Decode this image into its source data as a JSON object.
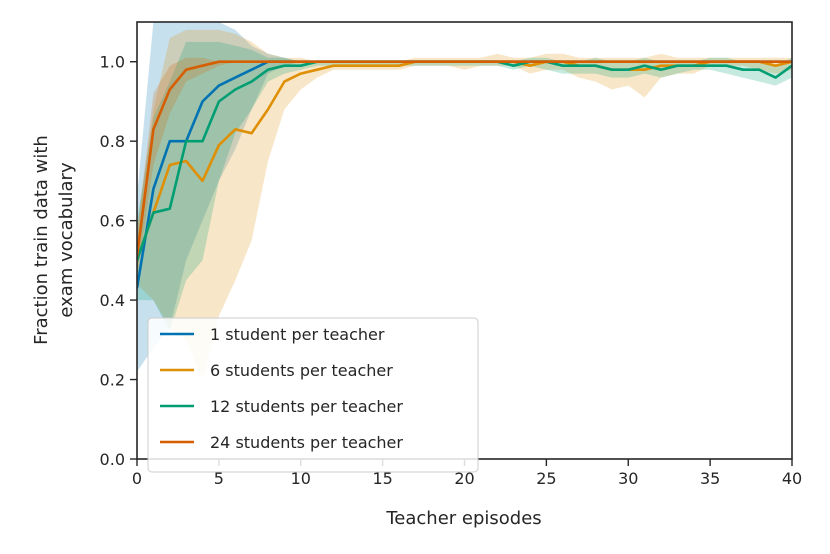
{
  "chart_data": {
    "type": "line",
    "xlabel": "Teacher episodes",
    "ylabel_lines": [
      "Fraction train data with",
      "exam vocabulary"
    ],
    "xlim": [
      0,
      40
    ],
    "ylim": [
      0,
      1.1
    ],
    "xticks": [
      0,
      5,
      10,
      15,
      20,
      25,
      30,
      35,
      40
    ],
    "yticks": [
      0.0,
      0.2,
      0.4,
      0.6,
      0.8,
      1.0
    ],
    "xtick_labels": [
      "0",
      "5",
      "10",
      "15",
      "20",
      "25",
      "30",
      "35",
      "40"
    ],
    "ytick_labels": [
      "0.0",
      "0.2",
      "0.4",
      "0.6",
      "0.8",
      "1.0"
    ],
    "grid": false,
    "legend_position": "lower-left",
    "x": [
      0,
      1,
      2,
      3,
      4,
      5,
      6,
      7,
      8,
      9,
      10,
      11,
      12,
      13,
      14,
      15,
      16,
      17,
      18,
      19,
      20,
      21,
      22,
      23,
      24,
      25,
      26,
      27,
      28,
      29,
      30,
      31,
      32,
      33,
      34,
      35,
      36,
      37,
      38,
      39,
      40
    ],
    "series": [
      {
        "name": "1 student per teacher",
        "color": "#0173b2",
        "values": [
          0.43,
          0.68,
          0.8,
          0.8,
          0.9,
          0.94,
          0.96,
          0.98,
          1.0,
          1.0,
          1.0,
          1.0,
          1.0,
          1.0,
          1.0,
          1.0,
          1.0,
          1.0,
          1.0,
          1.0,
          1.0,
          1.0,
          1.0,
          1.0,
          1.0,
          1.0,
          1.0,
          1.0,
          1.0,
          1.0,
          1.0,
          1.0,
          1.0,
          1.0,
          1.0,
          1.0,
          1.0,
          1.0,
          1.0,
          1.0,
          1.0
        ],
        "lower": [
          0.22,
          0.28,
          0.33,
          0.5,
          0.6,
          0.7,
          0.78,
          0.88,
          0.97,
          0.99,
          1.0,
          1.0,
          1.0,
          1.0,
          1.0,
          1.0,
          1.0,
          1.0,
          1.0,
          1.0,
          1.0,
          1.0,
          1.0,
          1.0,
          1.0,
          1.0,
          1.0,
          1.0,
          1.0,
          1.0,
          1.0,
          1.0,
          1.0,
          1.0,
          1.0,
          1.0,
          1.0,
          1.0,
          1.0,
          1.0,
          1.0
        ],
        "upper": [
          0.66,
          1.1,
          1.1,
          1.1,
          1.1,
          1.1,
          1.08,
          1.04,
          1.02,
          1.01,
          1.0,
          1.0,
          1.0,
          1.0,
          1.0,
          1.0,
          1.0,
          1.0,
          1.0,
          1.0,
          1.0,
          1.0,
          1.0,
          1.0,
          1.0,
          1.0,
          1.0,
          1.0,
          1.0,
          1.0,
          1.0,
          1.0,
          1.0,
          1.0,
          1.0,
          1.0,
          1.0,
          1.0,
          1.0,
          1.0,
          1.0
        ]
      },
      {
        "name": "6 students per teacher",
        "color": "#de8f05",
        "values": [
          0.5,
          0.62,
          0.74,
          0.75,
          0.7,
          0.79,
          0.83,
          0.82,
          0.88,
          0.95,
          0.97,
          0.98,
          0.99,
          0.99,
          0.99,
          0.99,
          0.99,
          1.0,
          1.0,
          1.0,
          1.0,
          1.0,
          1.0,
          1.0,
          0.99,
          1.0,
          1.0,
          0.99,
          0.99,
          0.98,
          0.98,
          0.98,
          0.99,
          0.99,
          0.99,
          1.0,
          1.0,
          1.0,
          1.0,
          0.99,
          1.0
        ],
        "lower": [
          0.44,
          0.4,
          0.33,
          0.3,
          0.2,
          0.36,
          0.45,
          0.55,
          0.75,
          0.88,
          0.93,
          0.96,
          0.98,
          0.98,
          0.98,
          0.98,
          0.98,
          0.99,
          0.99,
          0.99,
          0.98,
          0.99,
          0.99,
          0.99,
          0.97,
          0.98,
          0.98,
          0.96,
          0.95,
          0.93,
          0.94,
          0.91,
          0.96,
          0.97,
          0.97,
          0.99,
          0.99,
          0.99,
          0.98,
          0.97,
          0.98
        ],
        "upper": [
          0.58,
          0.88,
          1.06,
          1.08,
          1.08,
          1.08,
          1.07,
          1.05,
          1.02,
          1.01,
          1.01,
          1.0,
          1.0,
          1.0,
          1.0,
          1.0,
          1.0,
          1.01,
          1.01,
          1.01,
          1.01,
          1.01,
          1.02,
          1.01,
          1.01,
          1.02,
          1.02,
          1.01,
          1.01,
          1.01,
          1.01,
          1.01,
          1.02,
          1.01,
          1.01,
          1.01,
          1.01,
          1.01,
          1.01,
          1.01,
          1.01
        ]
      },
      {
        "name": "12 students per teacher",
        "color": "#029e73",
        "values": [
          0.5,
          0.62,
          0.63,
          0.8,
          0.8,
          0.9,
          0.93,
          0.95,
          0.98,
          0.99,
          0.99,
          1.0,
          1.0,
          1.0,
          1.0,
          1.0,
          1.0,
          1.0,
          1.0,
          1.0,
          1.0,
          1.0,
          1.0,
          0.99,
          1.0,
          1.0,
          0.99,
          0.99,
          0.99,
          0.98,
          0.98,
          0.99,
          0.98,
          0.99,
          0.99,
          0.99,
          0.99,
          0.98,
          0.98,
          0.96,
          0.99
        ],
        "lower": [
          0.4,
          0.4,
          0.32,
          0.45,
          0.5,
          0.7,
          0.82,
          0.88,
          0.95,
          0.97,
          0.98,
          0.99,
          0.99,
          0.99,
          0.99,
          0.99,
          0.99,
          0.99,
          0.99,
          0.99,
          0.99,
          0.99,
          0.99,
          0.98,
          0.99,
          0.98,
          0.97,
          0.97,
          0.97,
          0.96,
          0.96,
          0.97,
          0.96,
          0.97,
          0.98,
          0.98,
          0.97,
          0.96,
          0.95,
          0.94,
          0.96
        ],
        "upper": [
          0.6,
          0.86,
          0.95,
          1.05,
          1.05,
          1.05,
          1.04,
          1.03,
          1.01,
          1.01,
          1.0,
          1.0,
          1.0,
          1.0,
          1.0,
          1.0,
          1.0,
          1.0,
          1.0,
          1.0,
          1.0,
          1.0,
          1.0,
          1.0,
          1.01,
          1.01,
          1.0,
          1.0,
          1.01,
          1.0,
          1.0,
          1.01,
          1.0,
          1.0,
          1.0,
          1.01,
          1.01,
          1.0,
          1.0,
          0.99,
          1.01
        ]
      },
      {
        "name": "24 students per teacher",
        "color": "#d55e00",
        "values": [
          0.51,
          0.83,
          0.93,
          0.98,
          0.99,
          1.0,
          1.0,
          1.0,
          1.0,
          1.0,
          1.0,
          1.0,
          1.0,
          1.0,
          1.0,
          1.0,
          1.0,
          1.0,
          1.0,
          1.0,
          1.0,
          1.0,
          1.0,
          1.0,
          1.0,
          1.0,
          1.0,
          1.0,
          1.0,
          1.0,
          1.0,
          1.0,
          1.0,
          1.0,
          1.0,
          1.0,
          1.0,
          1.0,
          1.0,
          1.0,
          1.0
        ],
        "lower": [
          0.46,
          0.74,
          0.87,
          0.95,
          0.97,
          0.99,
          1.0,
          1.0,
          1.0,
          1.0,
          1.0,
          1.0,
          1.0,
          1.0,
          1.0,
          1.0,
          1.0,
          1.0,
          1.0,
          1.0,
          1.0,
          1.0,
          1.0,
          1.0,
          1.0,
          1.0,
          1.0,
          1.0,
          1.0,
          1.0,
          1.0,
          1.0,
          1.0,
          1.0,
          1.0,
          1.0,
          1.0,
          1.0,
          1.0,
          1.0,
          1.0
        ],
        "upper": [
          0.57,
          0.92,
          0.99,
          1.01,
          1.01,
          1.0,
          1.0,
          1.0,
          1.0,
          1.0,
          1.0,
          1.0,
          1.0,
          1.0,
          1.0,
          1.0,
          1.0,
          1.0,
          1.0,
          1.0,
          1.0,
          1.0,
          1.0,
          1.0,
          1.0,
          1.0,
          1.0,
          1.0,
          1.0,
          1.0,
          1.0,
          1.0,
          1.0,
          1.0,
          1.0,
          1.0,
          1.0,
          1.0,
          1.0,
          1.0,
          1.0
        ]
      }
    ]
  }
}
